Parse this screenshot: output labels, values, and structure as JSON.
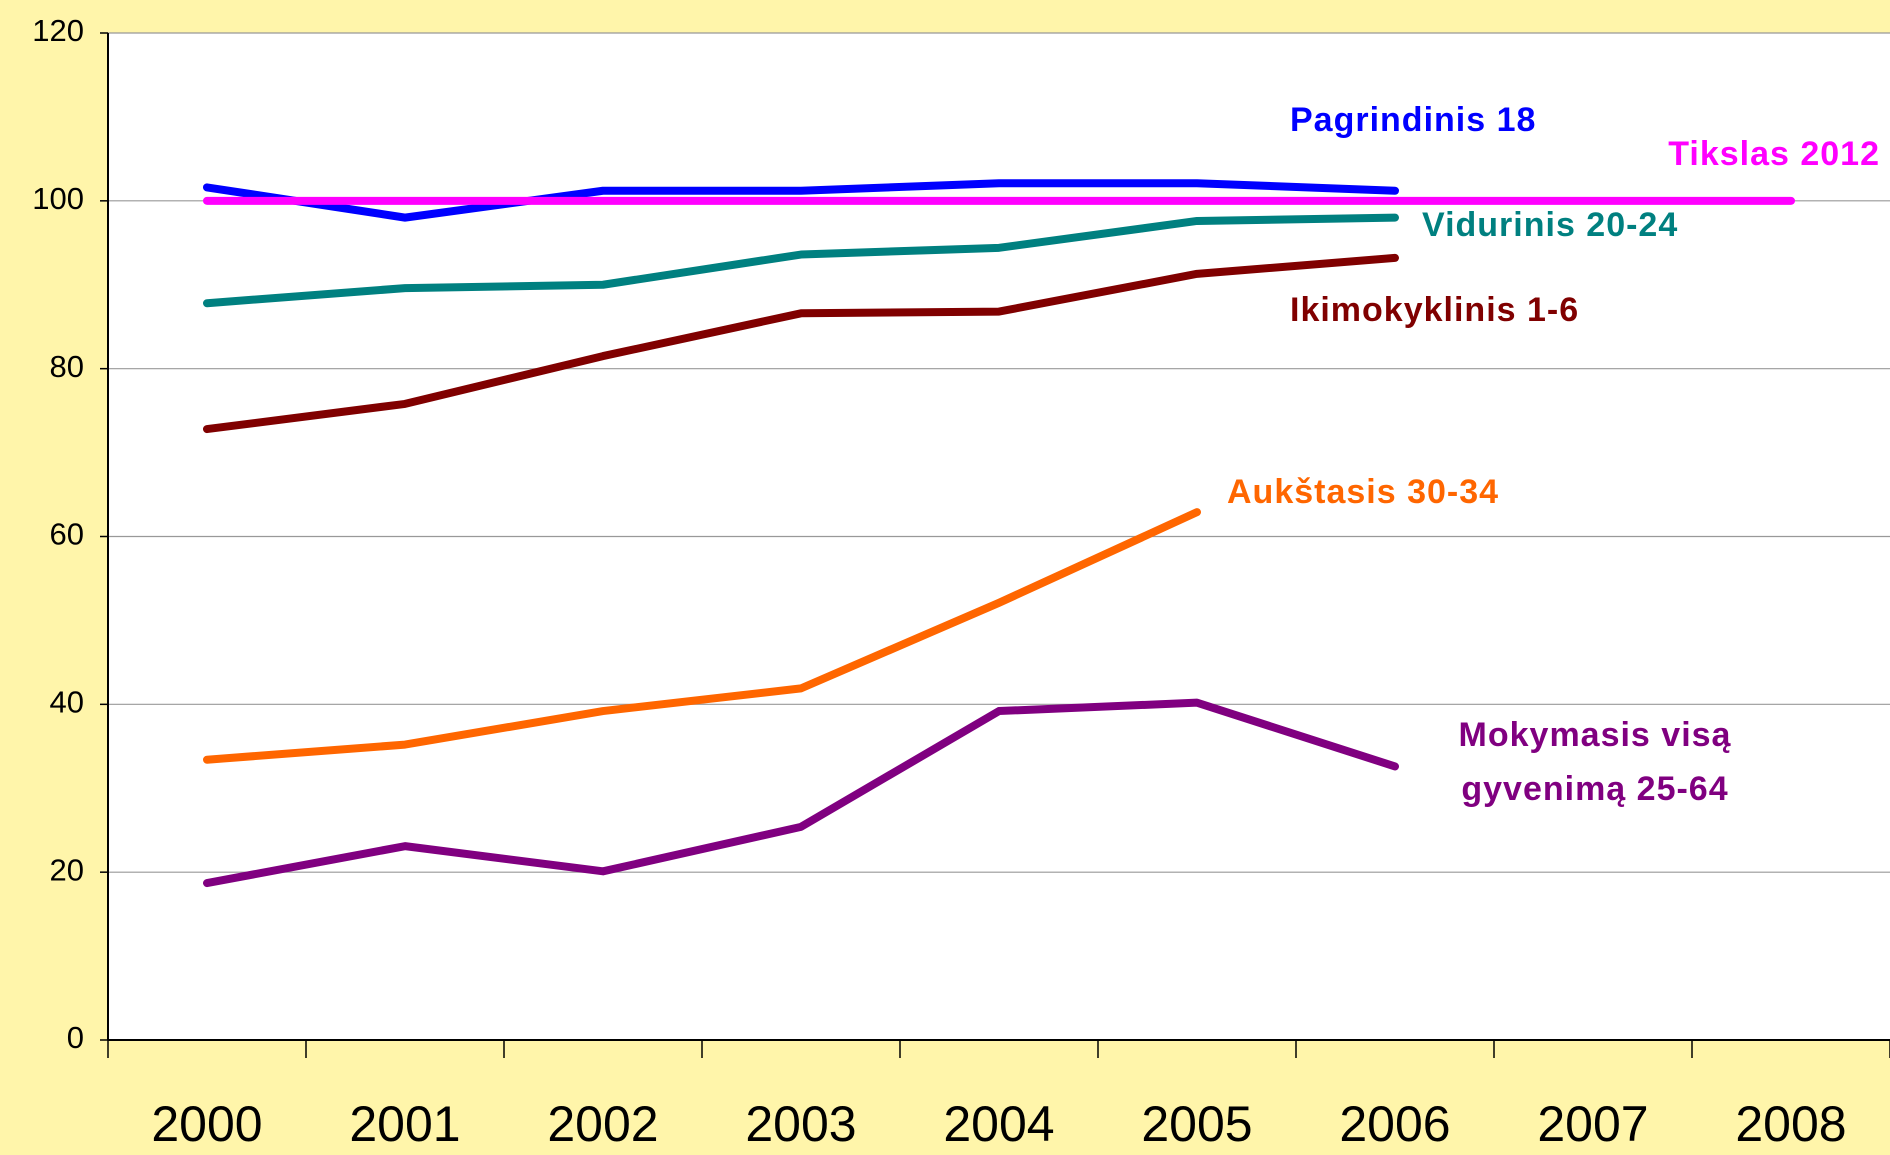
{
  "chart_data": {
    "type": "line",
    "categories": [
      "2000",
      "2001",
      "2002",
      "2003",
      "2004",
      "2005",
      "2006",
      "2007",
      "2008"
    ],
    "series": [
      {
        "name": "Pagrindinis 18",
        "color": "#0000ff",
        "values": [
          101.6,
          98.0,
          101.2,
          101.2,
          102.1,
          102.1,
          101.2,
          null,
          null
        ]
      },
      {
        "name": "Tikslas 2012",
        "color": "#ff00ff",
        "values": [
          100,
          100,
          100,
          100,
          100,
          100,
          100,
          100,
          100
        ]
      },
      {
        "name": "Vidurinis 20-24",
        "color": "#008080",
        "values": [
          87.8,
          89.6,
          90.0,
          93.6,
          94.4,
          97.6,
          98.0,
          null,
          null
        ]
      },
      {
        "name": "Ikimokyklinis 1-6",
        "color": "#800000",
        "values": [
          72.8,
          75.8,
          81.5,
          86.6,
          86.8,
          91.3,
          93.2,
          null,
          null
        ]
      },
      {
        "name": "Aukštasis 30-34",
        "color": "#ff6600",
        "values": [
          33.4,
          35.2,
          39.2,
          41.9,
          52.1,
          62.9,
          null,
          null,
          null
        ]
      },
      {
        "name": "Mokymasis visą gyvenimą 25-64",
        "color": "#800080",
        "values": [
          18.7,
          23.1,
          20.1,
          25.4,
          39.2,
          40.2,
          32.6,
          null,
          null
        ]
      }
    ],
    "ylim": [
      0,
      120
    ],
    "yticks": [
      0,
      20,
      40,
      60,
      80,
      100,
      120
    ],
    "grid": true
  }
}
